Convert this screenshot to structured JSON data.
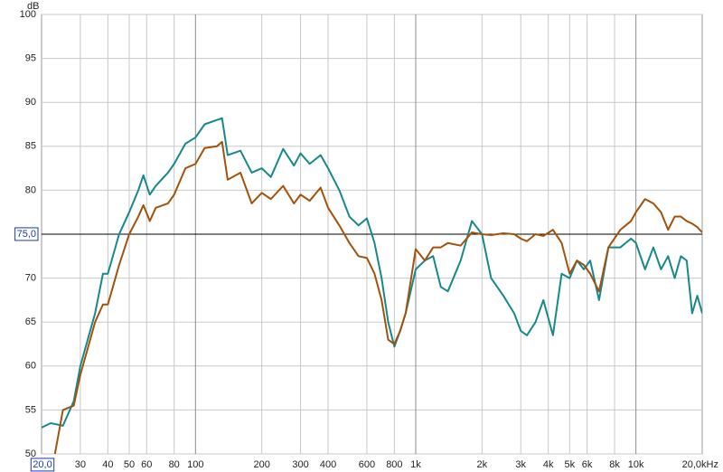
{
  "chart_data": {
    "type": "line",
    "y_unit": "dB",
    "x": [
      20,
      22,
      23,
      25,
      28,
      30,
      35,
      38,
      40,
      45,
      50,
      55,
      58,
      62,
      66,
      75,
      80,
      90,
      100,
      110,
      125,
      132,
      140,
      160,
      180,
      200,
      220,
      250,
      280,
      300,
      330,
      370,
      400,
      450,
      500,
      550,
      600,
      650,
      700,
      750,
      800,
      850,
      900,
      1000,
      1100,
      1200,
      1300,
      1400,
      1600,
      1800,
      2000,
      2200,
      2500,
      2800,
      3000,
      3200,
      3500,
      3800,
      4200,
      4600,
      5000,
      5400,
      5800,
      6200,
      6800,
      7500,
      8500,
      9500,
      10000,
      11000,
      12000,
      13000,
      14000,
      15000,
      16000,
      17000,
      18000,
      19000,
      20000
    ],
    "series": [
      {
        "color": "#17898a",
        "values": [
          53,
          53.5,
          53.4,
          53.2,
          56,
          60,
          66,
          70.5,
          70.5,
          75,
          77.5,
          80,
          81.7,
          79.5,
          80.5,
          82,
          83,
          85.3,
          86,
          87.5,
          88,
          88.2,
          84,
          84.5,
          82,
          82.5,
          81.5,
          84.7,
          82.8,
          84.2,
          83,
          84,
          82.5,
          80,
          77,
          76,
          76.8,
          74,
          70,
          65,
          62.2,
          64,
          66,
          71,
          72,
          72.5,
          69,
          68.5,
          72,
          76.5,
          75,
          70,
          68,
          66,
          64,
          63.5,
          65,
          67.5,
          63.5,
          70.5,
          70,
          72,
          71,
          72,
          67.5,
          73.5,
          73.5,
          74.5,
          74,
          71,
          73.5,
          71,
          72.5,
          70,
          72.5,
          72,
          66,
          68,
          66
        ]
      },
      {
        "color": "#a3520c",
        "values": [
          null,
          null,
          50,
          55,
          55.5,
          59,
          65,
          67,
          67,
          71.5,
          75,
          77,
          78.3,
          76.5,
          78,
          78.5,
          79.5,
          82.5,
          83,
          84.8,
          85,
          85.5,
          81.2,
          82,
          78.5,
          79.7,
          79,
          80.5,
          78.5,
          79.5,
          78.8,
          80.3,
          78,
          76,
          74,
          72.5,
          72.3,
          70.5,
          67.5,
          63,
          62.5,
          64,
          66,
          73.3,
          72,
          73.5,
          73.5,
          74,
          73.7,
          75.2,
          75,
          74.9,
          75.1,
          75,
          74.5,
          74.2,
          75,
          74.8,
          75.5,
          74,
          70.5,
          72,
          71.5,
          70.5,
          68.5,
          73.5,
          75.5,
          76.5,
          77.5,
          79,
          78.5,
          77.5,
          75.5,
          77,
          77,
          76.5,
          76.2,
          75.8,
          75.2
        ]
      }
    ],
    "xscale": "log",
    "xlim": [
      20,
      20000
    ],
    "xticks": [
      {
        "value": 20,
        "label": "20,0"
      },
      30,
      40,
      50,
      60,
      80,
      100,
      200,
      300,
      400,
      600,
      800,
      {
        "value": 1000,
        "label": "1k"
      },
      {
        "value": 2000,
        "label": "2k"
      },
      {
        "value": 3000,
        "label": "3k"
      },
      {
        "value": 4000,
        "label": "4k"
      },
      {
        "value": 5000,
        "label": "5k"
      },
      {
        "value": 6000,
        "label": "6k"
      },
      {
        "value": 8000,
        "label": "8k"
      },
      {
        "value": 10000,
        "label": "10k"
      },
      {
        "value": 20000,
        "label": "20,0kHz"
      }
    ],
    "ylim": [
      50,
      100
    ],
    "yticks": [
      50,
      55,
      60,
      65,
      70,
      {
        "value": 75,
        "label": "75,0"
      },
      80,
      85,
      90,
      95,
      100
    ],
    "grid": true,
    "cursor": {
      "x": 20,
      "y": 75
    }
  }
}
